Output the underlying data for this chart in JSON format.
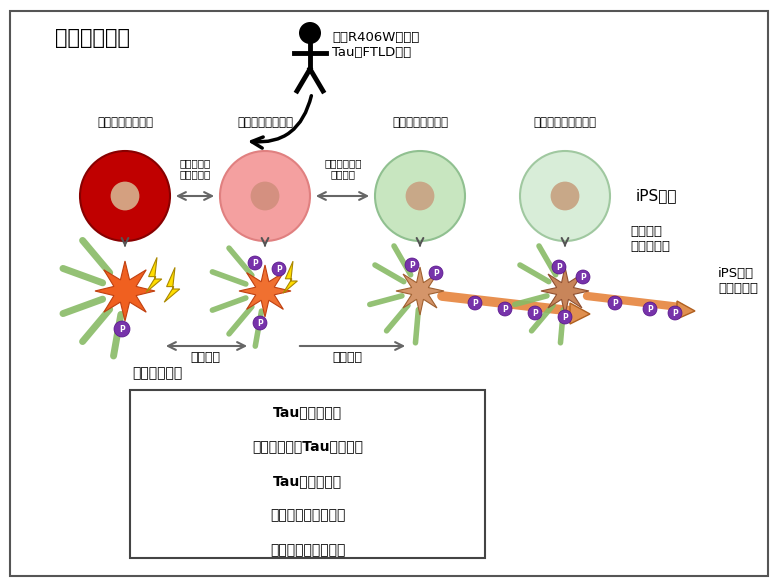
{
  "bg_color": "#ffffff",
  "border_color": "#555555",
  "title_text": "本研究的概要",
  "patient_text": "携带R406W突变型\nTau的FTLD患者",
  "cell_labels": [
    "纯合突变型细胞系",
    "来自患者的细胞系",
    "突变修正型细胞系",
    "来自健康人的细胞系"
  ],
  "cell_sublabels": [
    "通过基因编\n辑导入突变",
    "通过基因编辑\n修正突变",
    "",
    ""
  ],
  "ips_label": "iPS细胞",
  "differentiate_text": "诱导分化\n为神经细胞",
  "neuron_ips_label": "iPS细胞\n源神经细胞",
  "phenotype_label_left": "表型恶化",
  "phenotype_label_right": "表型救援",
  "observed_header": "检测到的表型",
  "observed_items": [
    "Tau的低磷酸化",
    "钙蛋白酶导致Tau片段增加",
    "Tau的局部变化",
    "线粒体运输能力受损",
    "线粒体运输能力受损"
  ],
  "cell_colors": [
    "#c00000",
    "#f4a0a0",
    "#c8e6c0",
    "#d8edd8"
  ],
  "cell_nucleus_colors": [
    "#d4a080",
    "#d49080",
    "#c8a888",
    "#c8a888"
  ],
  "cell_border_colors": [
    "#880000",
    "#e08080",
    "#90c090",
    "#a0c8a0"
  ],
  "phospho_color": "#7733aa",
  "lightning_color": "#ffdd00",
  "arrow_color": "#555555",
  "neuron1_color": "#f07030",
  "neuron2_color": "#f08040",
  "neuron3_color": "#d4956a",
  "neuron4_color": "#c8855a",
  "dend_color": "#88bb66",
  "axon_color": "#e89050"
}
